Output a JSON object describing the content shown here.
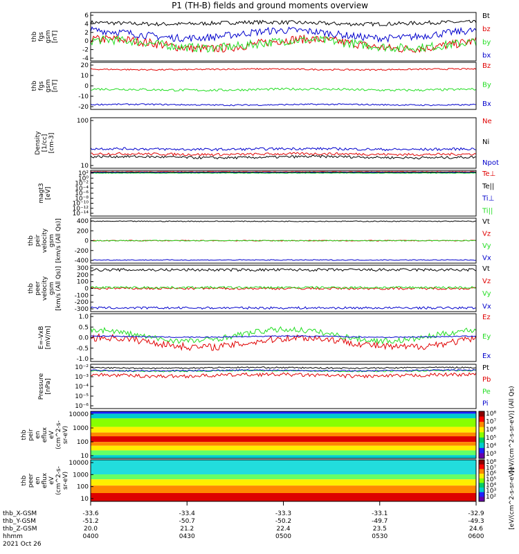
{
  "title": "P1 (TH-B) fields and ground moments overview",
  "colors": {
    "black": "#000000",
    "red": "#e00000",
    "green": "#22dd22",
    "blue": "#0000cc"
  },
  "chart_data": [
    {
      "type": "line",
      "ylabel_lines": [
        "thb",
        "fgs",
        "gsm",
        "[nT]"
      ],
      "yticks": [
        "6",
        "4",
        "2",
        "0",
        "-2",
        "-4"
      ],
      "ylim": [
        -4,
        6
      ],
      "legend": [
        {
          "name": "Bt",
          "color": "black"
        },
        {
          "name": "bz",
          "color": "red"
        },
        {
          "name": "by",
          "color": "green"
        },
        {
          "name": "bx",
          "color": "blue"
        }
      ]
    },
    {
      "type": "line",
      "ylabel_lines": [
        "thb",
        "fgs",
        "gsm",
        "[nT]"
      ],
      "yticks": [
        "20",
        "10",
        "0",
        "-10",
        "-20"
      ],
      "ylim": [
        -20,
        20
      ],
      "legend": [
        {
          "name": "Bz",
          "color": "red"
        },
        {
          "name": "By",
          "color": "green"
        },
        {
          "name": "Bx",
          "color": "blue"
        }
      ]
    },
    {
      "type": "line",
      "ylabel_lines": [
        "Density",
        "[1/cc]",
        "[cm-3]"
      ],
      "yticks": [
        "100",
        "10"
      ],
      "log": true,
      "legend": [
        {
          "name": "Ne",
          "color": "red"
        },
        {
          "name": "Ni",
          "color": "black"
        },
        {
          "name": "Npot",
          "color": "blue"
        }
      ]
    },
    {
      "type": "line",
      "ylabel_lines": [
        "magt3",
        "[eV]"
      ],
      "yticks": [
        "10²",
        "10⁰",
        "10⁻²",
        "10⁻⁴",
        "10⁻⁶",
        "10⁻⁸",
        "10⁻¹⁰",
        "10⁻¹²",
        "10⁻¹⁴"
      ],
      "log": true,
      "legend": [
        {
          "name": "Te⊥",
          "color": "red"
        },
        {
          "name": "Te||",
          "color": "black"
        },
        {
          "name": "Ti⊥",
          "color": "blue"
        },
        {
          "name": "Ti||",
          "color": "green"
        }
      ]
    },
    {
      "type": "line",
      "ylabel_lines": [
        "thb",
        "peir",
        "velocity",
        "gsm",
        "[km/s (All Qs)]"
      ],
      "yticks": [
        "400",
        "200",
        "0",
        "-200",
        "-400"
      ],
      "ylim": [
        -400,
        400
      ],
      "legend": [
        {
          "name": "Vt",
          "color": "black"
        },
        {
          "name": "Vz",
          "color": "red"
        },
        {
          "name": "Vy",
          "color": "green"
        },
        {
          "name": "Vx",
          "color": "blue"
        }
      ]
    },
    {
      "type": "line",
      "ylabel_lines": [
        "thb",
        "peer",
        "velocity",
        "gsm",
        "[km/s (All Qs)]"
      ],
      "yticks": [
        "300",
        "200",
        "100",
        "0",
        "-100",
        "-200",
        "-300"
      ],
      "ylim": [
        -300,
        300
      ],
      "legend": [
        {
          "name": "Vt",
          "color": "black"
        },
        {
          "name": "Vz",
          "color": "red"
        },
        {
          "name": "Vy",
          "color": "green"
        },
        {
          "name": "Vx",
          "color": "blue"
        }
      ]
    },
    {
      "type": "line",
      "ylabel_lines": [
        "E=-VxB",
        "[mV/m]"
      ],
      "yticks": [
        "1.0",
        "0.5",
        "0.0",
        "-0.5",
        "-1.0"
      ],
      "ylim": [
        -1.2,
        1.2
      ],
      "legend": [
        {
          "name": "Ez",
          "color": "red"
        },
        {
          "name": "Ey",
          "color": "green"
        },
        {
          "name": "Ex",
          "color": "blue"
        }
      ]
    },
    {
      "type": "line",
      "ylabel_lines": [
        "Pressure",
        "[nPa]"
      ],
      "yticks": [
        "10⁻²",
        "10⁻³",
        "10⁻⁴",
        "10⁻⁵",
        "10⁻⁶"
      ],
      "log": true,
      "legend": [
        {
          "name": "Pt",
          "color": "black"
        },
        {
          "name": "Pb",
          "color": "red"
        },
        {
          "name": "Pe",
          "color": "green"
        },
        {
          "name": "Pi",
          "color": "blue"
        }
      ]
    },
    {
      "type": "heatmap",
      "ylabel_lines": [
        "thb",
        "peir",
        "en",
        "eflux",
        "eV",
        "(cm^2-s-",
        "sr-eV)"
      ],
      "yticks": [
        "10000",
        "1000",
        "100",
        "10"
      ],
      "colorbar_ticks": [
        "10⁸",
        "10⁷",
        "10⁶",
        "10⁵",
        "10⁴",
        "10³"
      ],
      "colorbar_label": "[eV/(cm^2-s-sr-eV)] (All Qs)"
    },
    {
      "type": "heatmap",
      "ylabel_lines": [
        "thb",
        "peer",
        "en",
        "eflux",
        "eV",
        "(cm^2-s-",
        "sr-eV)"
      ],
      "yticks": [
        "10000",
        "1000",
        "100",
        "10"
      ],
      "colorbar_ticks": [
        "10⁸",
        "10⁷",
        "10⁶",
        "10⁵",
        "10⁴",
        "10³",
        "10²"
      ]
    }
  ],
  "axis": {
    "row_labels": [
      "thb_X-GSM",
      "thb_Y-GSM",
      "thb_Z-GSM",
      "hhmm",
      "2021 Oct 26"
    ],
    "ticks": [
      {
        "x": "-33.6",
        "y": "-51.2",
        "z": "20.0",
        "t": "0400"
      },
      {
        "x": "-33.4",
        "y": "-50.7",
        "z": "21.2",
        "t": "0430"
      },
      {
        "x": "-33.3",
        "y": "-50.2",
        "z": "22.4",
        "t": "0500"
      },
      {
        "x": "-33.1",
        "y": "-49.7",
        "z": "23.5",
        "t": "0530"
      },
      {
        "x": "-32.9",
        "y": "-49.3",
        "z": "24.6",
        "t": "0600"
      }
    ]
  },
  "colorbar_main_label": "[eV/(cm^2-s-sr-eV)]"
}
